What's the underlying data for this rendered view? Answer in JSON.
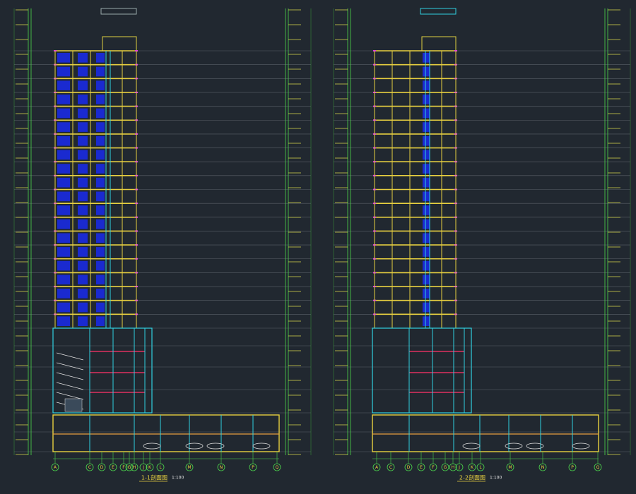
{
  "drawings": [
    {
      "title": "1-1剖面图",
      "scale": "1:100",
      "axes": [
        "A",
        "C",
        "D",
        "E",
        "F",
        "G",
        "H",
        "J",
        "K",
        "L",
        "M",
        "N",
        "P",
        "Q"
      ]
    },
    {
      "title": "2-2剖面图",
      "scale": "1:100",
      "axes": [
        "A",
        "C",
        "D",
        "E",
        "F",
        "G",
        "H",
        "J",
        "K",
        "L",
        "M",
        "N",
        "P",
        "Q"
      ]
    }
  ]
}
